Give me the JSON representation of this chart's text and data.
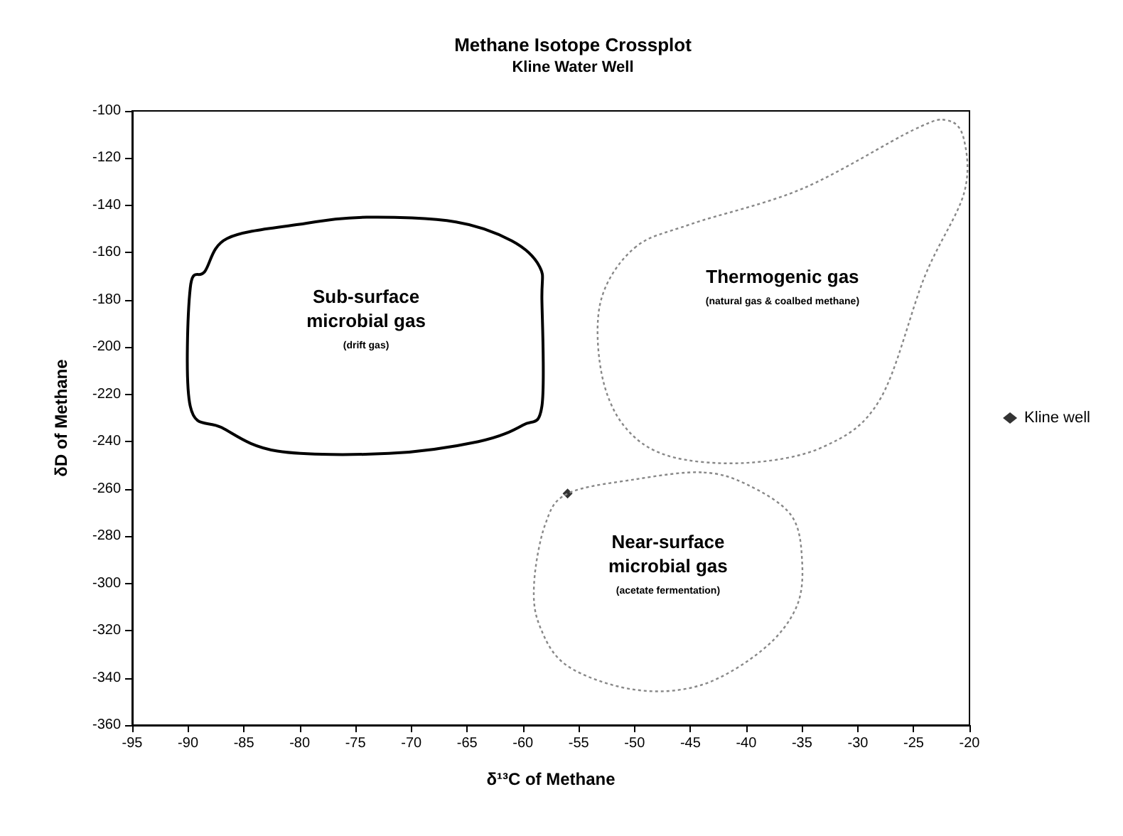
{
  "chart_data": {
    "type": "scatter",
    "title": "Methane Isotope Crossplot",
    "subtitle": "Kline Water Well",
    "xlabel": "δ¹³C of Methane",
    "ylabel": "δD of Methane",
    "xlim": [
      -95,
      -20
    ],
    "xticks": [
      -95,
      -90,
      -85,
      -80,
      -75,
      -70,
      -65,
      -60,
      -55,
      -50,
      -45,
      -40,
      -35,
      -30,
      -25,
      -20
    ],
    "ylim": [
      -360,
      -100
    ],
    "yticks": [
      -360,
      -340,
      -320,
      -300,
      -280,
      -260,
      -240,
      -220,
      -200,
      -180,
      -160,
      -140,
      -120,
      -100
    ],
    "grid": false,
    "legend": "right",
    "marker": "diamond",
    "series": [
      {
        "name": "Kline well",
        "color": "#000000",
        "x": [
          -56
        ],
        "values": [
          -262
        ]
      }
    ],
    "annotations": [
      "Sub-surface\nmicrobial gas",
      "(drift gas)",
      "Thermogenic gas",
      "(natural gas & coalbed methane)",
      "Near-surface\nmicrobial gas",
      "(acetate fermentation)"
    ]
  }
}
